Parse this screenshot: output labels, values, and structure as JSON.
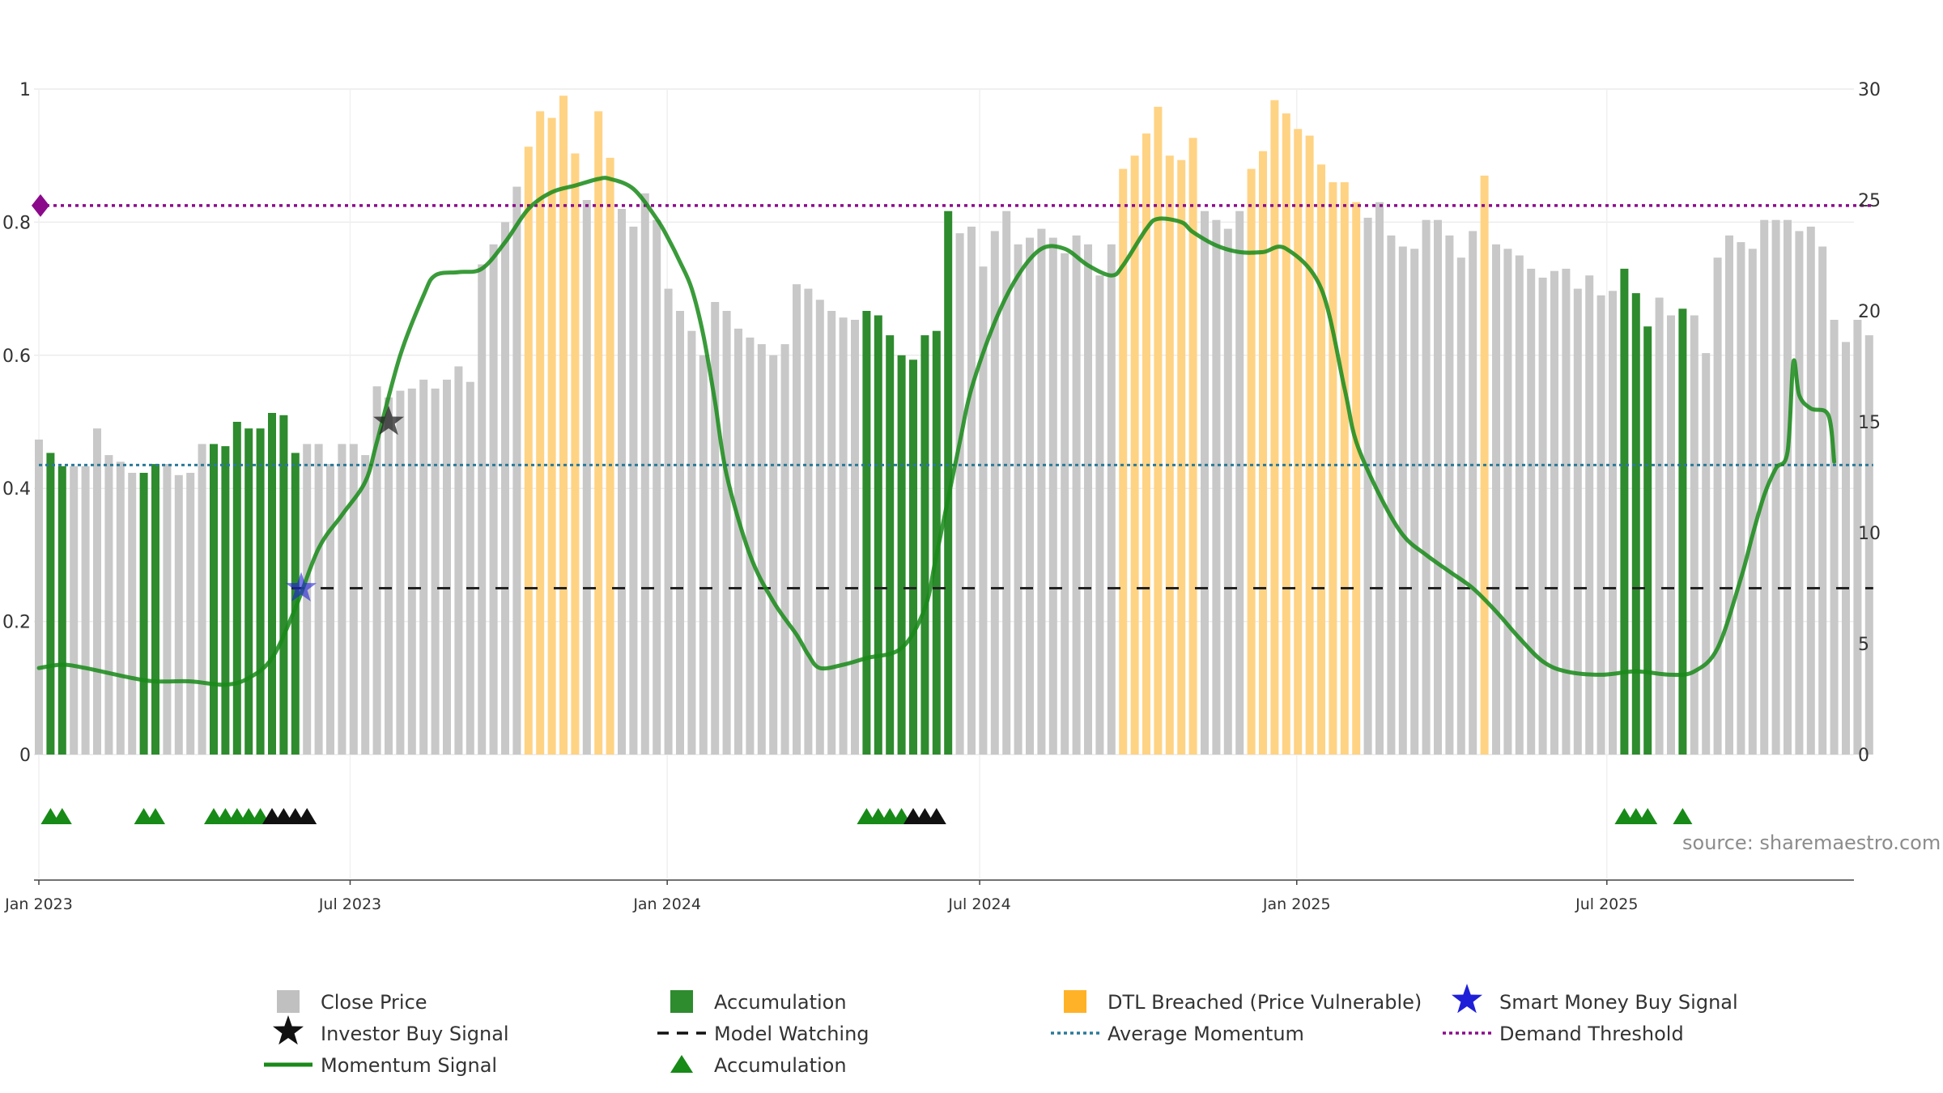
{
  "chart_data": {
    "type": "bar",
    "source": "source: sharemaestro.com",
    "x_ticks": [
      "Jan 2023",
      "Jul 2023",
      "Jan 2024",
      "Jul 2024",
      "Jan 2025",
      "Jul 2025"
    ],
    "x_tick_positions": [
      0,
      26.7,
      53.9,
      80.7,
      107.9,
      134.5
    ],
    "left_axis": {
      "ticks": [
        "0",
        "0.2",
        "0.4",
        "0.6",
        "0.8",
        "1"
      ],
      "ylim": [
        0,
        1
      ]
    },
    "right_axis": {
      "ticks": [
        "0",
        "5",
        "10",
        "15",
        "20",
        "25",
        "30"
      ],
      "ylim": [
        0,
        30
      ]
    },
    "reference_lines": {
      "average_momentum": 0.435,
      "model_watching": 0.25,
      "demand_threshold": 0.825
    },
    "colors": {
      "close_price": "#c8c8c8",
      "accumulation": "#2e8b2e",
      "dtl_breached": "#ffd384",
      "momentum": "#188a18",
      "average_momentum": "#2a7a9a",
      "model_watching": "#222222",
      "demand_threshold": "#8b0a8b",
      "smart_money": "#1f1fd8",
      "investor": "#222222",
      "triangle_green": "#178a17",
      "triangle_black": "#111111"
    },
    "price_bars": {
      "description_units": "right axis (price)",
      "values": [
        14.2,
        13.6,
        13,
        13,
        13,
        14.7,
        13.5,
        13.2,
        12.7,
        12.7,
        13.1,
        13.1,
        12.6,
        12.7,
        14,
        14,
        13.9,
        15,
        14.7,
        14.7,
        15.4,
        15.3,
        13.6,
        14,
        14,
        13.1,
        14,
        14,
        13.5,
        16.6,
        16.1,
        16.4,
        16.5,
        16.9,
        16.5,
        16.9,
        17.5,
        16.8,
        22.1,
        23,
        24,
        25.6,
        27.4,
        29,
        28.7,
        29.7,
        27.1,
        25,
        29,
        26.9,
        24.6,
        23.8,
        25.3,
        24.1,
        21,
        20,
        19.1,
        18,
        20.4,
        20,
        19.2,
        18.8,
        18.5,
        18,
        18.5,
        21.2,
        21,
        20.5,
        20,
        19.7,
        19.6,
        20,
        19.8,
        18.9,
        18,
        17.8,
        18.9,
        19.1,
        24.5,
        23.5,
        23.8,
        22,
        23.6,
        24.5,
        23,
        23.3,
        23.7,
        23.3,
        22.6,
        23.4,
        23,
        21.6,
        23,
        26.4,
        27,
        28,
        29.2,
        27,
        26.8,
        27.8,
        24.5,
        24.1,
        23.7,
        24.5,
        26.4,
        27.2,
        29.5,
        28.9,
        28.2,
        27.9,
        26.6,
        25.8,
        25.8,
        24.9,
        24.2,
        24.9,
        23.4,
        22.9,
        22.8,
        24.1,
        24.1,
        23.4,
        22.4,
        23.6,
        26.1,
        23,
        22.8,
        22.5,
        21.9,
        21.5,
        21.8,
        21.9,
        21,
        21.6,
        20.7,
        20.9,
        21.9,
        20.8,
        19.3,
        20.6,
        19.8,
        20.1,
        19.8,
        18.1,
        22.4,
        23.4,
        23.1,
        22.8,
        24.1,
        24.1,
        24.1,
        23.6,
        23.8,
        22.9,
        19.6,
        18.6,
        19.6,
        18.9
      ],
      "accumulation_indices": [
        1,
        2,
        9,
        10,
        15,
        16,
        17,
        18,
        19,
        20,
        21,
        22,
        71,
        72,
        73,
        74,
        75,
        76,
        77,
        78,
        136,
        137,
        138,
        141
      ],
      "dtl_indices": [
        42,
        43,
        44,
        45,
        46,
        48,
        49,
        93,
        94,
        95,
        96,
        97,
        98,
        99,
        104,
        105,
        106,
        107,
        108,
        109,
        110,
        111,
        112,
        113,
        124
      ]
    },
    "momentum_signal": {
      "description_units": "left axis",
      "x": [
        0,
        2,
        4,
        8,
        10,
        13,
        16,
        18,
        20,
        22,
        24,
        26,
        28,
        29,
        31,
        33,
        34,
        36,
        38,
        40,
        42,
        44,
        46,
        48,
        49,
        51,
        53,
        54,
        55,
        56,
        57,
        58,
        59,
        61,
        63,
        65,
        66,
        67,
        69,
        71,
        74,
        76,
        77,
        79,
        80,
        82,
        84,
        86,
        88,
        90,
        92,
        93,
        95,
        96,
        98,
        99,
        101,
        103,
        105,
        107,
        110,
        112,
        113,
        115,
        117,
        119,
        121,
        123,
        125,
        127,
        129,
        131,
        134,
        137,
        140,
        142,
        144,
        146,
        147,
        148,
        149,
        150,
        150.5,
        151,
        152,
        153.5,
        154
      ],
      "y": [
        0.13,
        0.135,
        0.13,
        0.115,
        0.11,
        0.11,
        0.105,
        0.115,
        0.145,
        0.22,
        0.31,
        0.36,
        0.41,
        0.47,
        0.6,
        0.69,
        0.72,
        0.725,
        0.73,
        0.77,
        0.82,
        0.845,
        0.855,
        0.865,
        0.865,
        0.85,
        0.805,
        0.775,
        0.74,
        0.7,
        0.63,
        0.53,
        0.42,
        0.3,
        0.23,
        0.18,
        0.15,
        0.13,
        0.135,
        0.145,
        0.16,
        0.22,
        0.3,
        0.47,
        0.55,
        0.65,
        0.72,
        0.76,
        0.76,
        0.735,
        0.72,
        0.735,
        0.79,
        0.805,
        0.8,
        0.785,
        0.765,
        0.755,
        0.755,
        0.76,
        0.7,
        0.55,
        0.47,
        0.39,
        0.33,
        0.3,
        0.275,
        0.25,
        0.215,
        0.175,
        0.14,
        0.125,
        0.12,
        0.125,
        0.12,
        0.125,
        0.16,
        0.265,
        0.33,
        0.39,
        0.43,
        0.455,
        0.59,
        0.54,
        0.52,
        0.51,
        0.44
      ]
    },
    "average_momentum_label": "Average Momentum",
    "demand_threshold_marker": {
      "x": 0,
      "y": 0.825
    },
    "smart_money_signal": {
      "x": 22.5,
      "y": 0.25
    },
    "investor_signal": {
      "x": 30,
      "y": 0.5
    },
    "triangles": {
      "green": [
        1,
        2,
        9,
        10,
        15,
        16,
        17,
        18,
        19,
        71,
        72,
        73,
        74,
        136,
        137,
        138,
        141
      ],
      "black": [
        20,
        21,
        22,
        23,
        75,
        76,
        77
      ]
    },
    "legend": {
      "items": [
        {
          "label": "Close Price",
          "kind": "square",
          "color": "#c0c0c0"
        },
        {
          "label": "Accumulation",
          "kind": "square",
          "color": "#2e8b2e"
        },
        {
          "label": "DTL Breached (Price Vulnerable)",
          "kind": "square",
          "color": "#ffb228"
        },
        {
          "label": "Smart Money Buy Signal",
          "kind": "star",
          "color": "#1f1fd8"
        },
        {
          "label": "Investor Buy Signal",
          "kind": "star",
          "color": "#111111"
        },
        {
          "label": "Model Watching",
          "kind": "dash",
          "color": "#111111"
        },
        {
          "label": "Average Momentum",
          "kind": "dot",
          "color": "#2a7a9a"
        },
        {
          "label": "Demand Threshold",
          "kind": "dot",
          "color": "#8b0a8b"
        },
        {
          "label": "Momentum Signal",
          "kind": "line",
          "color": "#188a18"
        },
        {
          "label": "Accumulation",
          "kind": "triangle",
          "color": "#178a17"
        }
      ]
    }
  }
}
